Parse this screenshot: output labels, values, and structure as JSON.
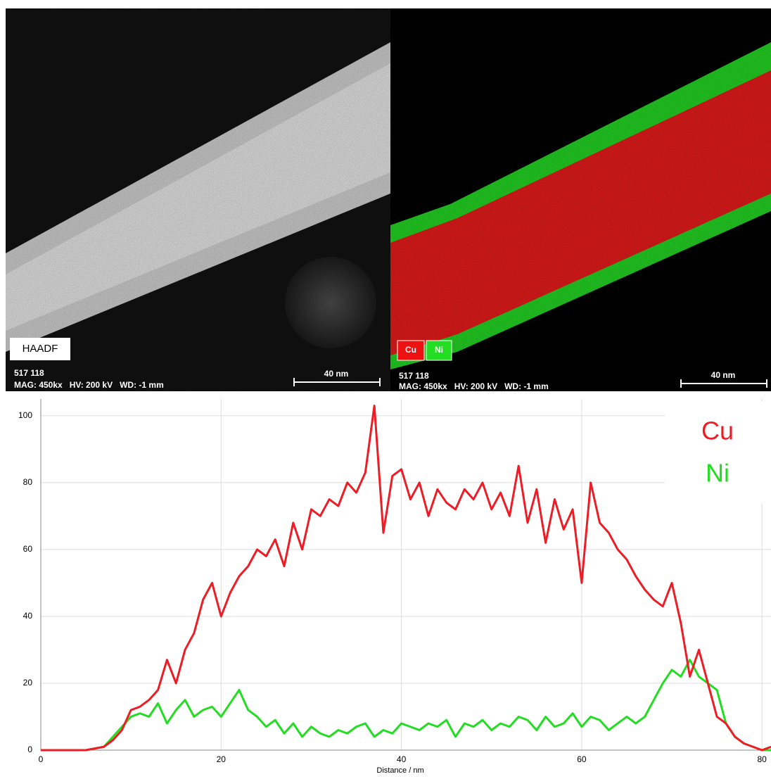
{
  "panels": [
    {
      "label": "HAADF",
      "id": "517 118",
      "info": "MAG: 450kx   HV: 200 kV   WD: -1 mm",
      "scale": "40 nm"
    },
    {
      "legend": [
        "Cu",
        "Ni"
      ],
      "id": "517 118",
      "info": "MAG: 450kx   HV: 200 kV   WD: -1 mm",
      "scale": "40 nm"
    }
  ],
  "chart_data": {
    "type": "line",
    "x_label": "Distance / nm",
    "x": [
      0,
      1,
      2,
      3,
      4,
      5,
      6,
      7,
      8,
      9,
      10,
      11,
      12,
      13,
      14,
      15,
      16,
      17,
      18,
      19,
      20,
      21,
      22,
      23,
      24,
      25,
      26,
      27,
      28,
      29,
      30,
      31,
      32,
      33,
      34,
      35,
      36,
      37,
      38,
      39,
      40,
      41,
      42,
      43,
      44,
      45,
      46,
      47,
      48,
      49,
      50,
      51,
      52,
      53,
      54,
      55,
      56,
      57,
      58,
      59,
      60,
      61,
      62,
      63,
      64,
      65,
      66,
      67,
      68,
      69,
      70,
      71,
      72,
      73,
      74,
      75,
      76,
      77,
      78,
      79,
      80,
      81
    ],
    "series": [
      {
        "name": "Cu",
        "color": "#ee1c24",
        "values": [
          0,
          0,
          0,
          0,
          0,
          0,
          0.5,
          1,
          3,
          6,
          12,
          13,
          15,
          18,
          27,
          20,
          30,
          35,
          45,
          50,
          40,
          47,
          52,
          55,
          60,
          58,
          63,
          55,
          68,
          60,
          72,
          70,
          75,
          73,
          80,
          77,
          83,
          103,
          65,
          82,
          84,
          75,
          80,
          70,
          78,
          74,
          72,
          78,
          75,
          80,
          72,
          77,
          70,
          85,
          68,
          78,
          62,
          75,
          66,
          72,
          50,
          80,
          68,
          65,
          60,
          57,
          52,
          48,
          45,
          43,
          50,
          38,
          22,
          30,
          20,
          10,
          8,
          4,
          2,
          1,
          0,
          1
        ]
      },
      {
        "name": "Ni",
        "color": "#22dd22",
        "values": [
          0,
          0,
          0,
          0,
          0,
          0,
          0.5,
          1,
          4,
          7,
          10,
          11,
          10,
          14,
          8,
          12,
          15,
          10,
          12,
          13,
          10,
          14,
          18,
          12,
          10,
          7,
          9,
          5,
          8,
          4,
          7,
          5,
          4,
          6,
          5,
          7,
          8,
          4,
          6,
          5,
          8,
          7,
          6,
          8,
          7,
          9,
          4,
          8,
          7,
          9,
          6,
          8,
          7,
          10,
          9,
          6,
          10,
          7,
          8,
          11,
          7,
          10,
          9,
          6,
          8,
          10,
          8,
          10,
          15,
          20,
          24,
          22,
          27,
          22,
          20,
          18,
          8,
          4,
          2,
          1,
          0,
          0
        ]
      }
    ],
    "xlim": [
      0,
      81
    ],
    "ylim": [
      0,
      105
    ],
    "xticks": [
      0,
      20,
      40,
      60,
      80
    ],
    "yticks": [
      0,
      20,
      40,
      60,
      80,
      100
    ],
    "grid": true,
    "legend": "top-right"
  }
}
